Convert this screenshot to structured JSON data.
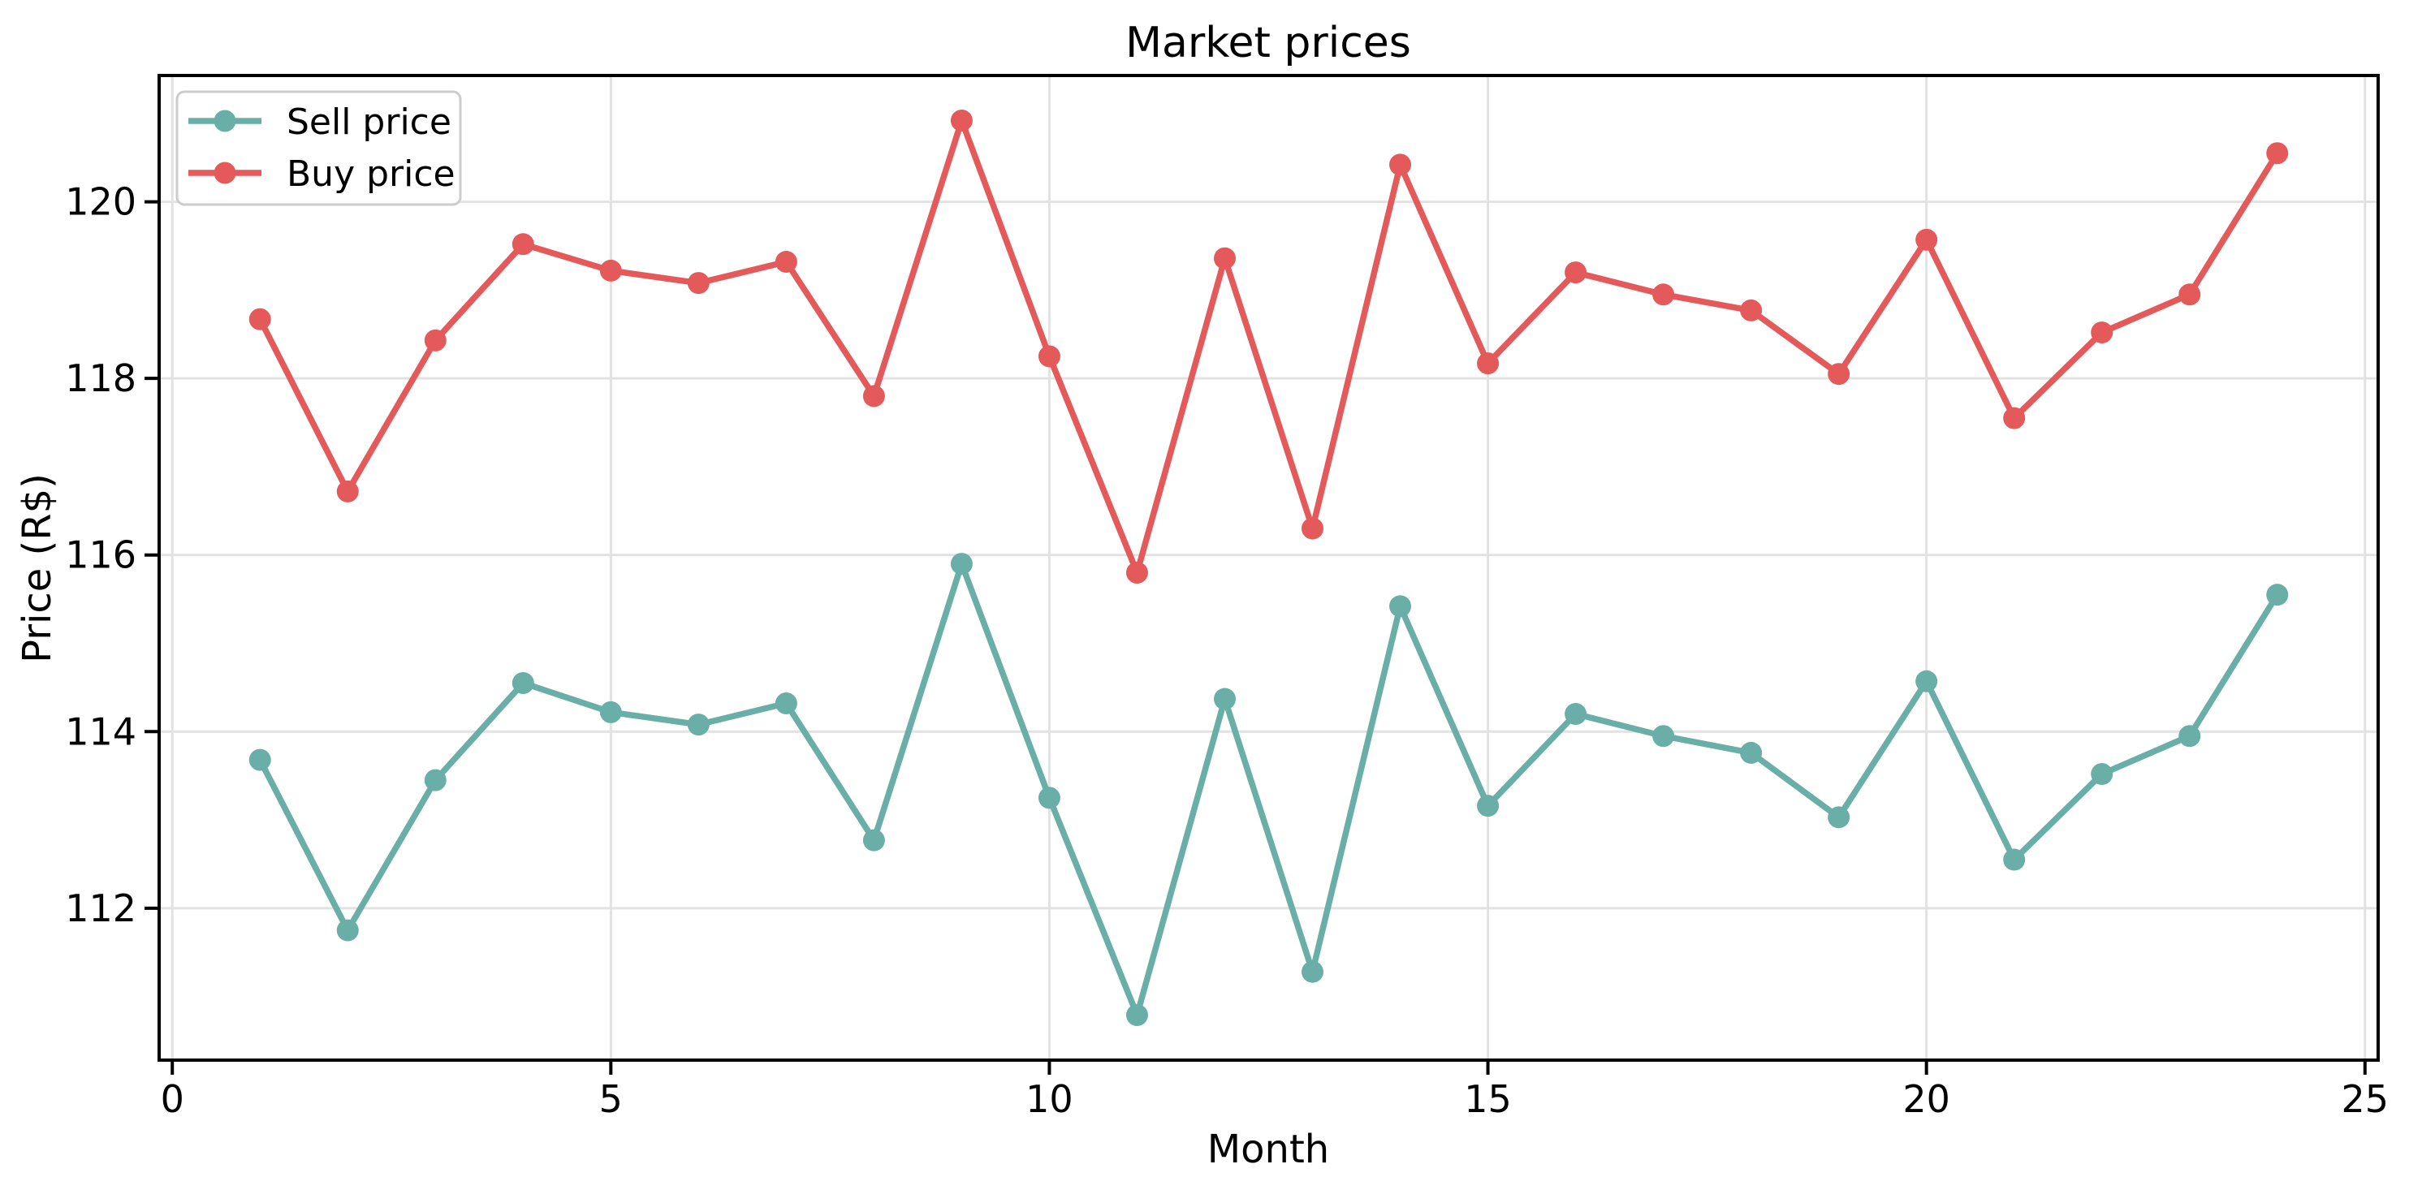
{
  "title": "Market prices",
  "chart_data": {
    "type": "line",
    "title": "Market prices",
    "xlabel": "Month",
    "ylabel": "Price (R$)",
    "x": [
      1,
      2,
      3,
      4,
      5,
      6,
      7,
      8,
      9,
      10,
      11,
      12,
      13,
      14,
      15,
      16,
      17,
      18,
      19,
      20,
      21,
      22,
      23,
      24
    ],
    "series": [
      {
        "name": "Sell price",
        "color": "#69AFA8",
        "values": [
          113.68,
          111.75,
          113.45,
          114.55,
          114.22,
          114.08,
          114.32,
          112.77,
          115.9,
          113.25,
          110.79,
          114.37,
          111.28,
          115.42,
          113.16,
          114.2,
          113.95,
          113.76,
          113.03,
          114.57,
          112.55,
          113.52,
          113.95,
          115.55
        ]
      },
      {
        "name": "Buy price",
        "color": "#E45A5A",
        "values": [
          118.67,
          116.72,
          118.43,
          119.52,
          119.22,
          119.08,
          119.32,
          117.8,
          120.92,
          118.25,
          115.8,
          119.36,
          116.3,
          120.42,
          118.17,
          119.2,
          118.95,
          118.77,
          118.05,
          119.57,
          117.55,
          118.52,
          118.95,
          120.55
        ]
      }
    ],
    "xlim": [
      -0.15,
      25.15
    ],
    "ylim": [
      110.28,
      121.43
    ],
    "x_ticks": [
      0,
      5,
      10,
      15,
      20,
      25
    ],
    "y_ticks": [
      112,
      114,
      116,
      118,
      120
    ],
    "grid": true,
    "grid_color": "#E2E2E2",
    "spine_color": "#000000",
    "background": "#FFFFFF",
    "legend_position": "upper left"
  }
}
